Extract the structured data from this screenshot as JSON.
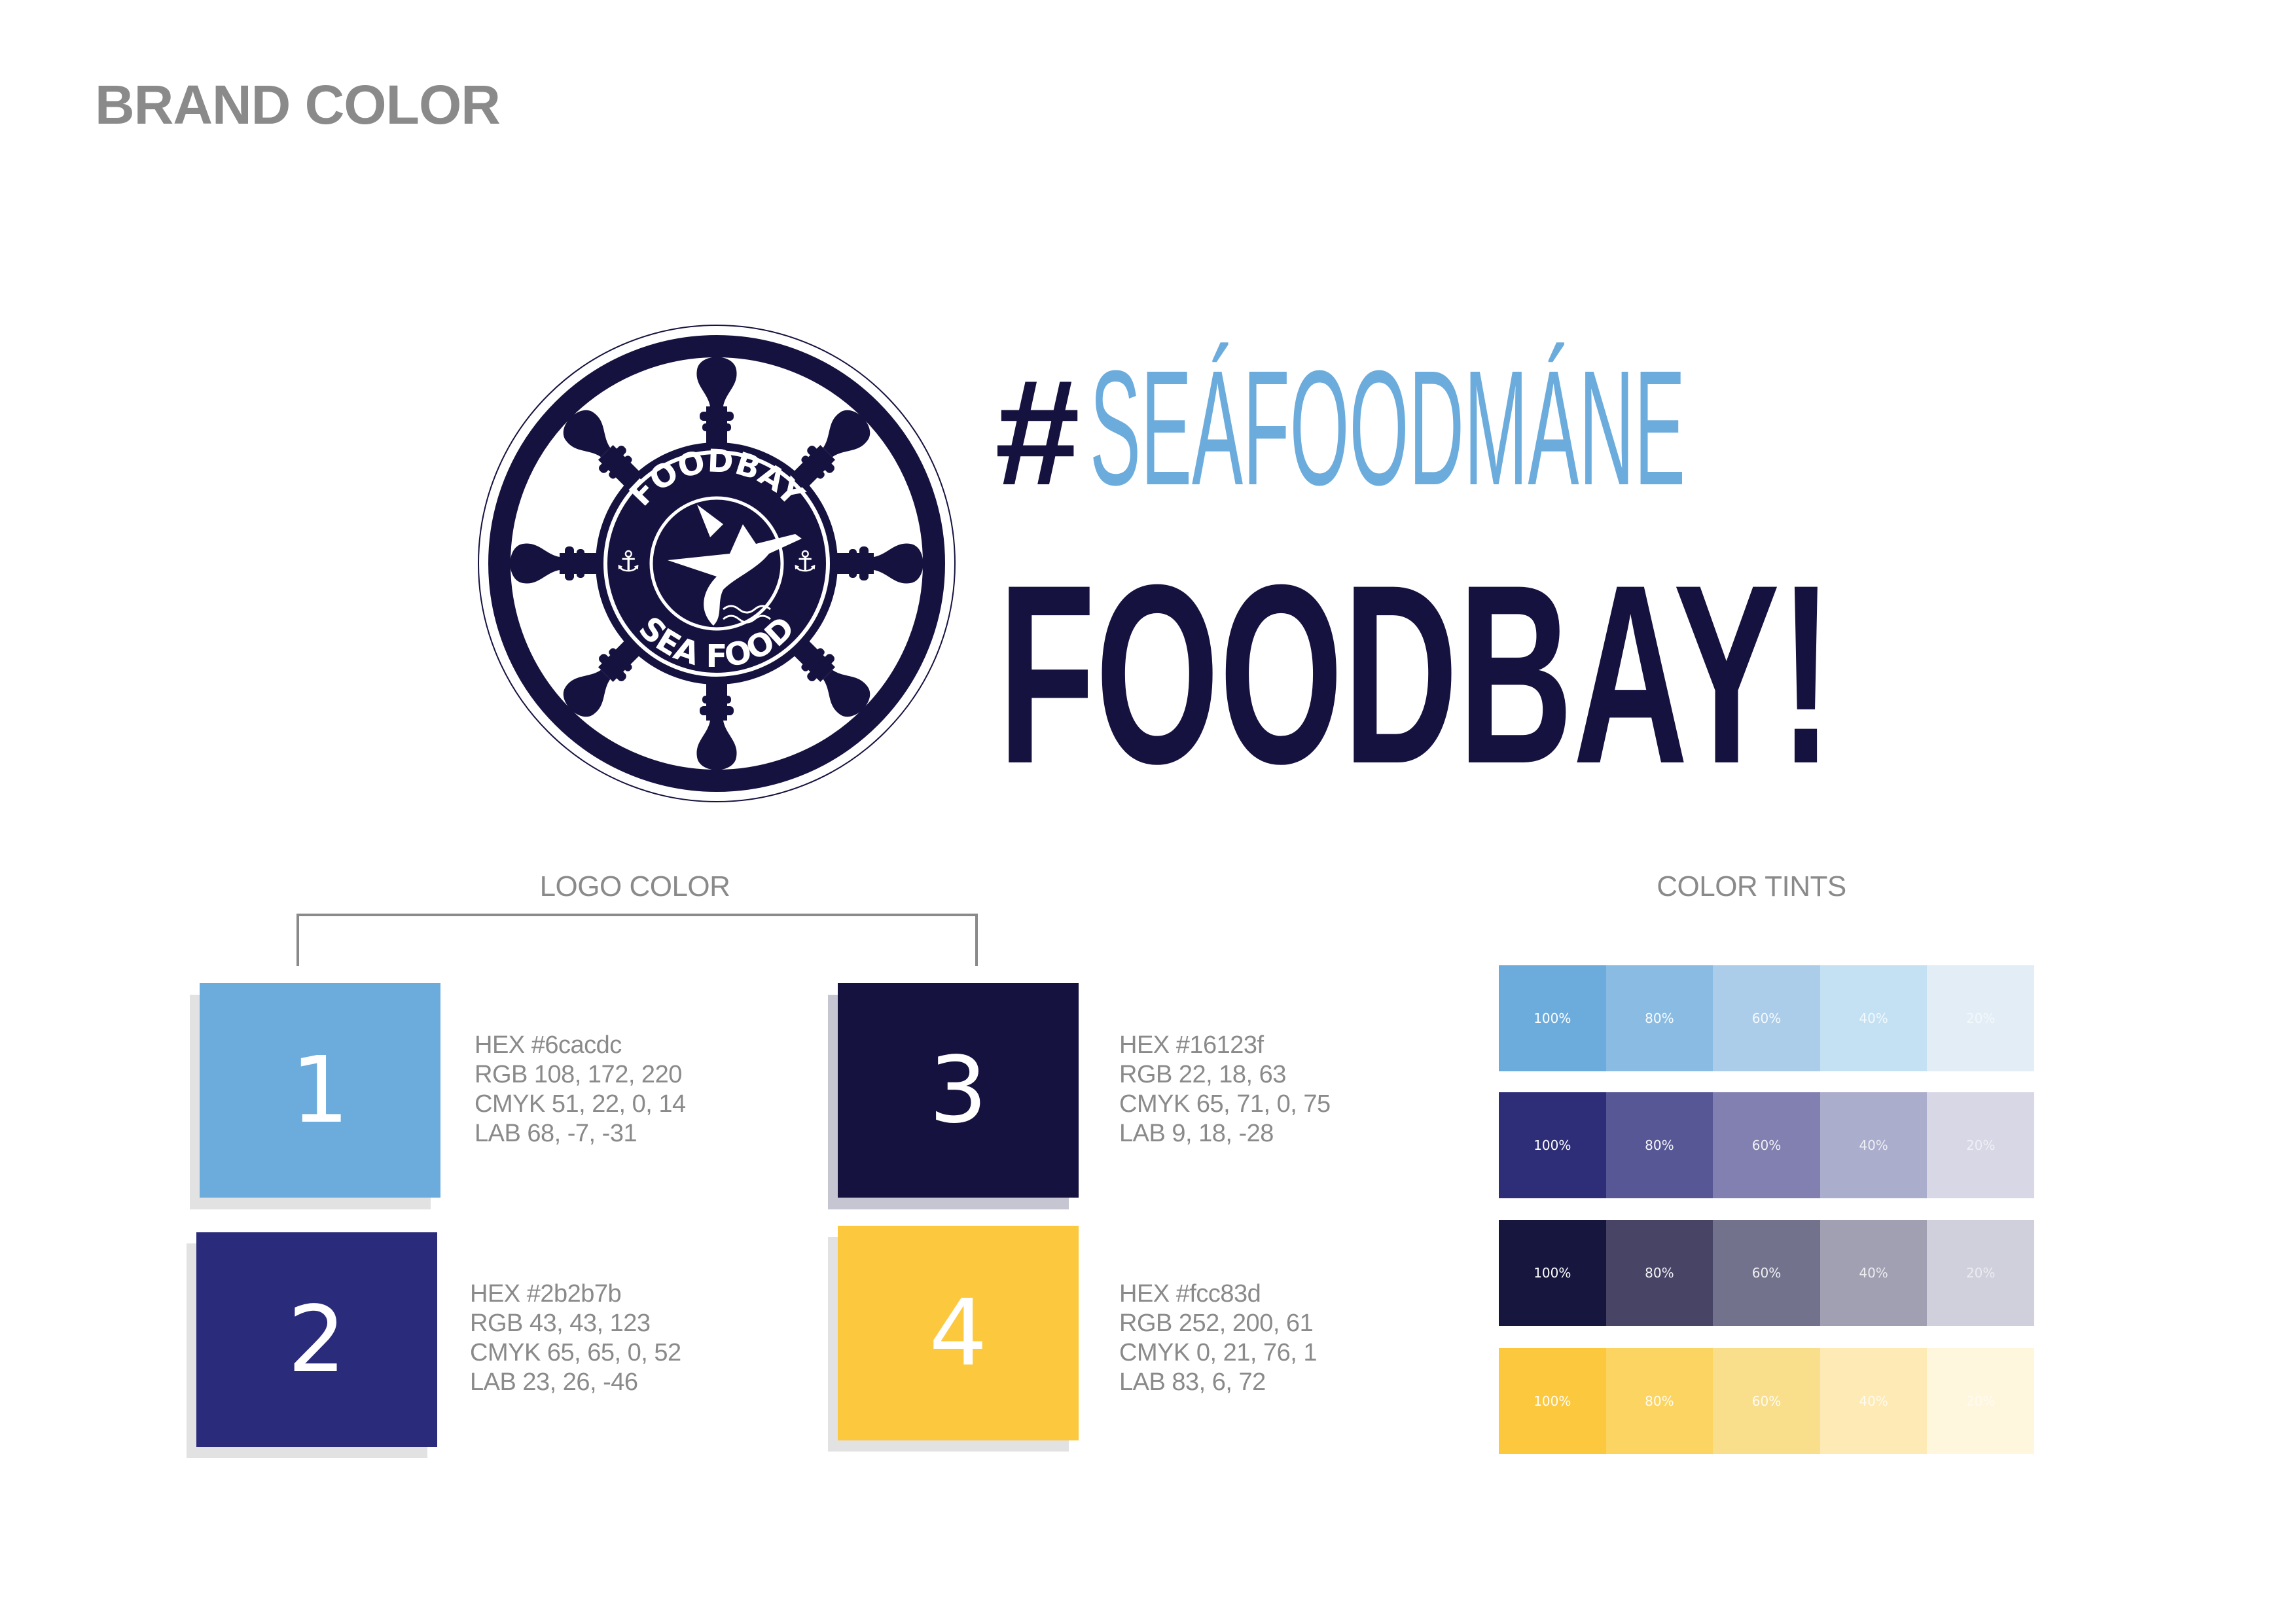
{
  "page": {
    "title": "BRAND COLOR"
  },
  "logo": {
    "top_text": "FOODBAY",
    "bottom_text": "SEA FOOD",
    "navy": "#16123f"
  },
  "headline": {
    "hashtag": "#",
    "tag": "SEÁFOODMÁNE",
    "brand": "FOODBAY!",
    "tag_color": "#6cacdc",
    "brand_color": "#16123f"
  },
  "logo_color": {
    "label": "LOGO COLOR",
    "swatches": [
      {
        "number": "1",
        "color": "#6cacdc",
        "hex": "HEX #6cacdc",
        "rgb": "RGB 108, 172, 220",
        "cmyk": "CMYK 51, 22, 0, 14",
        "lab": "LAB 68, -7, -31"
      },
      {
        "number": "2",
        "color": "#2b2b7b",
        "hex": "HEX #2b2b7b",
        "rgb": "RGB 43, 43, 123",
        "cmyk": "CMYK 65, 65, 0, 52",
        "lab": "LAB 23, 26, -46"
      },
      {
        "number": "3",
        "color": "#16123f",
        "hex": "HEX #16123f",
        "rgb": "RGB 22, 18, 63",
        "cmyk": "CMYK 65, 71, 0, 75",
        "lab": "LAB 9, 18, -28"
      },
      {
        "number": "4",
        "color": "#fcc83d",
        "hex": "HEX #fcc83d",
        "rgb": "RGB 252, 200, 61",
        "cmyk": "CMYK 0, 21, 76, 1",
        "lab": "LAB 83, 6, 72"
      }
    ]
  },
  "color_tints": {
    "label": "COLOR TINTS",
    "levels": [
      "100%",
      "80%",
      "60%",
      "40%",
      "20%"
    ],
    "rows": [
      [
        "#6cacdc",
        "#8abce3",
        "#abcde9",
        "#c4e1f3",
        "#e2edf6"
      ],
      [
        "#2e2d78",
        "#575796",
        "#8180b0",
        "#abadcc",
        "#d8d7e6"
      ],
      [
        "#17163f",
        "#474466",
        "#72728c",
        "#a1a0b2",
        "#d0cfdc"
      ],
      [
        "#fcc83d",
        "#fcd462",
        "#f9de8c",
        "#feeab5",
        "#fff6de"
      ]
    ]
  }
}
